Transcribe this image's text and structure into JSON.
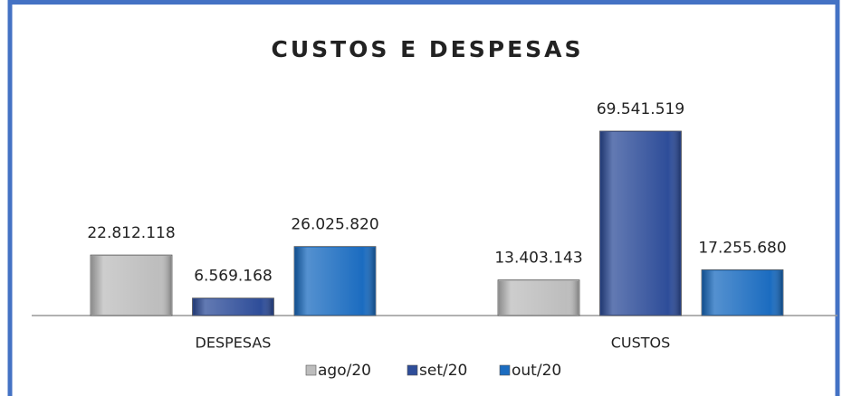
{
  "chart_data": {
    "type": "bar",
    "title": "CUSTOS E DESPESAS",
    "categories": [
      "DESPESAS",
      "CUSTOS"
    ],
    "series": [
      {
        "name": "ago/20",
        "color": "#bdbdbd",
        "values": [
          22812118,
          13403143
        ],
        "value_labels": [
          "22.812.118",
          "13.403.143"
        ]
      },
      {
        "name": "set/20",
        "color": "#2e4d99",
        "values": [
          6569168,
          69541519
        ],
        "value_labels": [
          "6.569.168",
          "69.541.519"
        ]
      },
      {
        "name": "out/20",
        "color": "#1b6cc0",
        "values": [
          26025820,
          17255680
        ],
        "value_labels": [
          "26.025.820",
          "17.255.680"
        ]
      }
    ],
    "legend": "bottom"
  }
}
